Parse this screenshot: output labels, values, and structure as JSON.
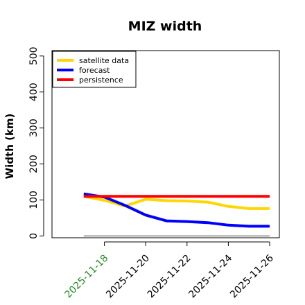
{
  "chart_data": {
    "type": "line",
    "title": "MIZ width",
    "ylabel": "Width (km)",
    "xlabel": "",
    "ylim": [
      -5,
      515
    ],
    "yticks": [
      0,
      100,
      200,
      300,
      400,
      500
    ],
    "xlim": [
      "2025-11-16",
      "2025-11-26"
    ],
    "xticks": [
      {
        "date": "2025-11-18",
        "label": "2025-11-18",
        "color": "#228B22"
      },
      {
        "date": "2025-11-20",
        "label": "2025-11-20",
        "color": "#000000"
      },
      {
        "date": "2025-11-22",
        "label": "2025-11-22",
        "color": "#000000"
      },
      {
        "date": "2025-11-24",
        "label": "2025-11-24",
        "color": "#000000"
      },
      {
        "date": "2025-11-26",
        "label": "2025-11-26",
        "color": "#000000"
      }
    ],
    "legend_position": "top-left",
    "grid": false,
    "series": [
      {
        "name": "satellite data",
        "color": "#FFD700",
        "points": [
          {
            "x": "2025-11-17",
            "y": 110
          },
          {
            "x": "2025-11-18",
            "y": 99
          },
          {
            "x": "2025-11-19",
            "y": 83
          },
          {
            "x": "2025-11-20",
            "y": 102
          },
          {
            "x": "2025-11-21",
            "y": 98
          },
          {
            "x": "2025-11-22",
            "y": 97
          },
          {
            "x": "2025-11-23",
            "y": 94
          },
          {
            "x": "2025-11-24",
            "y": 82
          },
          {
            "x": "2025-11-25",
            "y": 76
          },
          {
            "x": "2025-11-26",
            "y": 76
          }
        ]
      },
      {
        "name": "forecast",
        "color": "#0000FF",
        "points": [
          {
            "x": "2025-11-17",
            "y": 117
          },
          {
            "x": "2025-11-18",
            "y": 108
          },
          {
            "x": "2025-11-19",
            "y": 85
          },
          {
            "x": "2025-11-20",
            "y": 58
          },
          {
            "x": "2025-11-21",
            "y": 42
          },
          {
            "x": "2025-11-22",
            "y": 40
          },
          {
            "x": "2025-11-23",
            "y": 37
          },
          {
            "x": "2025-11-24",
            "y": 30
          },
          {
            "x": "2025-11-25",
            "y": 27
          },
          {
            "x": "2025-11-26",
            "y": 27
          }
        ]
      },
      {
        "name": "persistence",
        "color": "#FF0000",
        "points": [
          {
            "x": "2025-11-17",
            "y": 110
          },
          {
            "x": "2025-11-26",
            "y": 110
          }
        ]
      }
    ],
    "reference_line": {
      "y": 0,
      "x_from": "2025-11-17",
      "x_to": "2025-11-26",
      "color": "#808080"
    }
  }
}
